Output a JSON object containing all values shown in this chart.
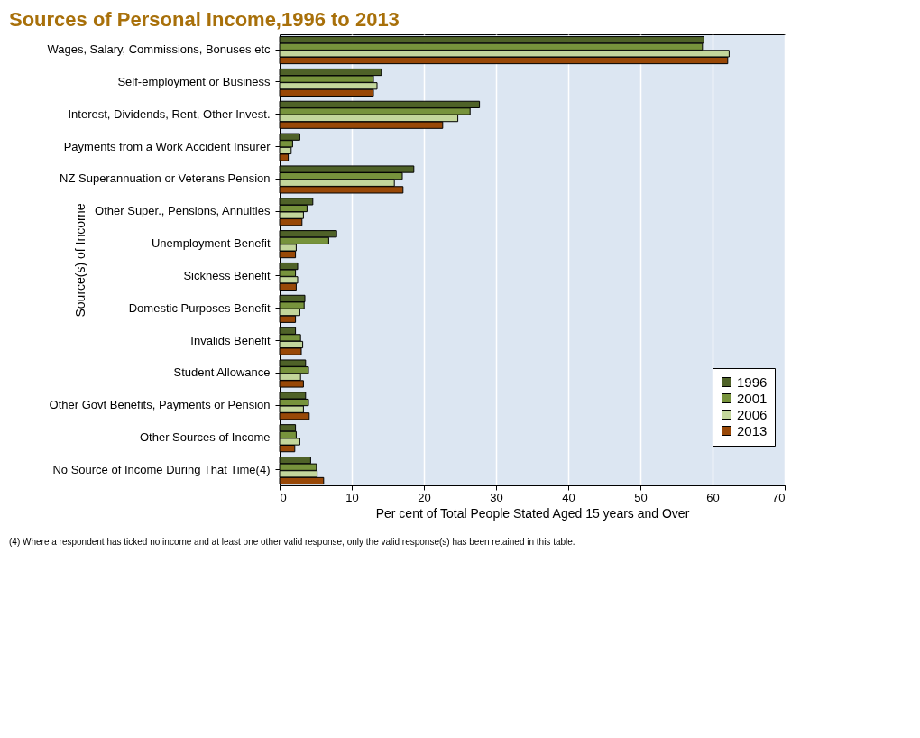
{
  "chart_data": {
    "type": "bar",
    "orientation": "horizontal",
    "title": "Sources of Personal Income,1996 to 2013",
    "xlabel": "Per cent of Total People Stated Aged 15 years and Over",
    "ylabel": "Source(s) of Income",
    "categories": [
      "Wages, Salary, Commissions, Bonuses etc",
      "Self-employment or Business",
      "Interest, Dividends, Rent, Other Invest.",
      "Payments from a Work Accident Insurer",
      "NZ Superannuation or Veterans Pension",
      "Other Super., Pensions, Annuities",
      "Unemployment Benefit",
      "Sickness Benefit",
      "Domestic Purposes Benefit",
      "Invalids Benefit",
      "Student Allowance",
      "Other Govt Benefits, Payments or Pension",
      "Other Sources of Income",
      "No Source of Income During That Time(4)"
    ],
    "series": [
      {
        "name": "1996",
        "color": "#4f6228",
        "values": [
          58.8,
          14.1,
          27.7,
          2.8,
          18.6,
          4.6,
          7.9,
          2.5,
          3.5,
          2.2,
          3.6,
          3.6,
          2.2,
          4.3
        ]
      },
      {
        "name": "2001",
        "color": "#77933c",
        "values": [
          58.6,
          13.0,
          26.4,
          1.8,
          17.0,
          3.8,
          6.8,
          2.2,
          3.4,
          2.9,
          4.0,
          4.0,
          2.3,
          5.1
        ]
      },
      {
        "name": "2006",
        "color": "#c3d69b",
        "values": [
          62.3,
          13.5,
          24.7,
          1.6,
          15.9,
          3.3,
          2.3,
          2.5,
          2.8,
          3.2,
          2.9,
          3.3,
          2.8,
          5.2
        ]
      },
      {
        "name": "2013",
        "color": "#984807",
        "values": [
          62.1,
          13.0,
          22.6,
          1.2,
          17.1,
          3.1,
          2.2,
          2.3,
          2.2,
          3.0,
          3.3,
          4.1,
          2.1,
          6.1
        ]
      }
    ],
    "xlim": [
      0,
      70
    ],
    "xticks": [
      0,
      10,
      20,
      30,
      40,
      50,
      60,
      70
    ],
    "grid": "x",
    "legend": "bottom right",
    "annotations": [
      "(4) Where a respondent has ticked no income and at least one other valid response, only the valid response(s) has been retained in this table."
    ]
  }
}
